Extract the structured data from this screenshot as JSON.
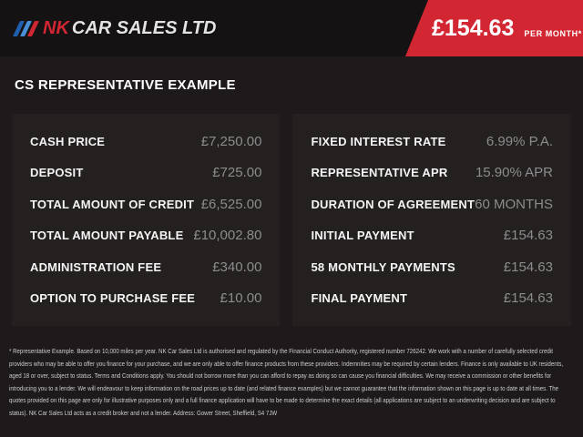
{
  "colors": {
    "accent_red": "#d22732",
    "topbar_bg": "#151213",
    "page_bg": "#1e1a1b",
    "panel_bg": "#23201f",
    "label_text": "#f4f4f4",
    "value_text": "#8d8b8c"
  },
  "header": {
    "logo": {
      "prefix": "NK",
      "name": "CAR SALES LTD"
    },
    "price_badge": {
      "amount": "£154.63",
      "period": "PER MONTH*"
    }
  },
  "page_title": "CS REPRESENTATIVE EXAMPLE",
  "finance_example": {
    "left_panel": {
      "rows": [
        {
          "label": "CASH PRICE",
          "value": "£7,250.00"
        },
        {
          "label": "DEPOSIT",
          "value": "£725.00"
        },
        {
          "label": "TOTAL AMOUNT OF CREDIT",
          "value": "£6,525.00"
        },
        {
          "label": "TOTAL AMOUNT PAYABLE",
          "value": "£10,002.80"
        },
        {
          "label": "ADMINISTRATION FEE",
          "value": "£340.00"
        },
        {
          "label": "OPTION TO PURCHASE FEE",
          "value": "£10.00"
        }
      ]
    },
    "right_panel": {
      "rows": [
        {
          "label": "FIXED INTEREST RATE",
          "value": "6.99% P.A."
        },
        {
          "label": "REPRESENTATIVE APR",
          "value": "15.90% APR"
        },
        {
          "label": "DURATION OF AGREEMENT",
          "value": "60 MONTHS"
        },
        {
          "label": "INITIAL PAYMENT",
          "value": "£154.63"
        },
        {
          "label": "58 MONTHLY PAYMENTS",
          "value": "£154.63"
        },
        {
          "label": "FINAL PAYMENT",
          "value": "£154.63"
        }
      ]
    }
  },
  "disclaimer": "* Representative Example. Based on 10,000 miles per year. NK Car Sales Ltd is authorised and regulated by the Financial Conduct Authority, registered number 726242. We work with a number of carefully selected credit providers who may be able to offer you finance for your purchase, and we are only able to offer finance products from these providers. Indemnities may be required by certain lenders. Finance is only available to UK residents, aged 18 or over, subject to status. Terms and Conditions apply. You should not borrow more than you can afford to repay as doing so can cause you financial difficulties. We may receive a commission or other benefits for introducing you to a lender. We will endeavour to keep information on the road prices up to date (and related finance examples) but we cannot guarantee that the information shown on this page is up to date at all times. The quotes provided on this page are only for illustrative purposes only and a full finance application will have to be made to determine the exact details (all applications are subject to an underwriting decision and are subject to status). NK Car Sales Ltd acts as a credit broker and not a lender. Address: Gower Street, Sheffield, S4 7JW"
}
